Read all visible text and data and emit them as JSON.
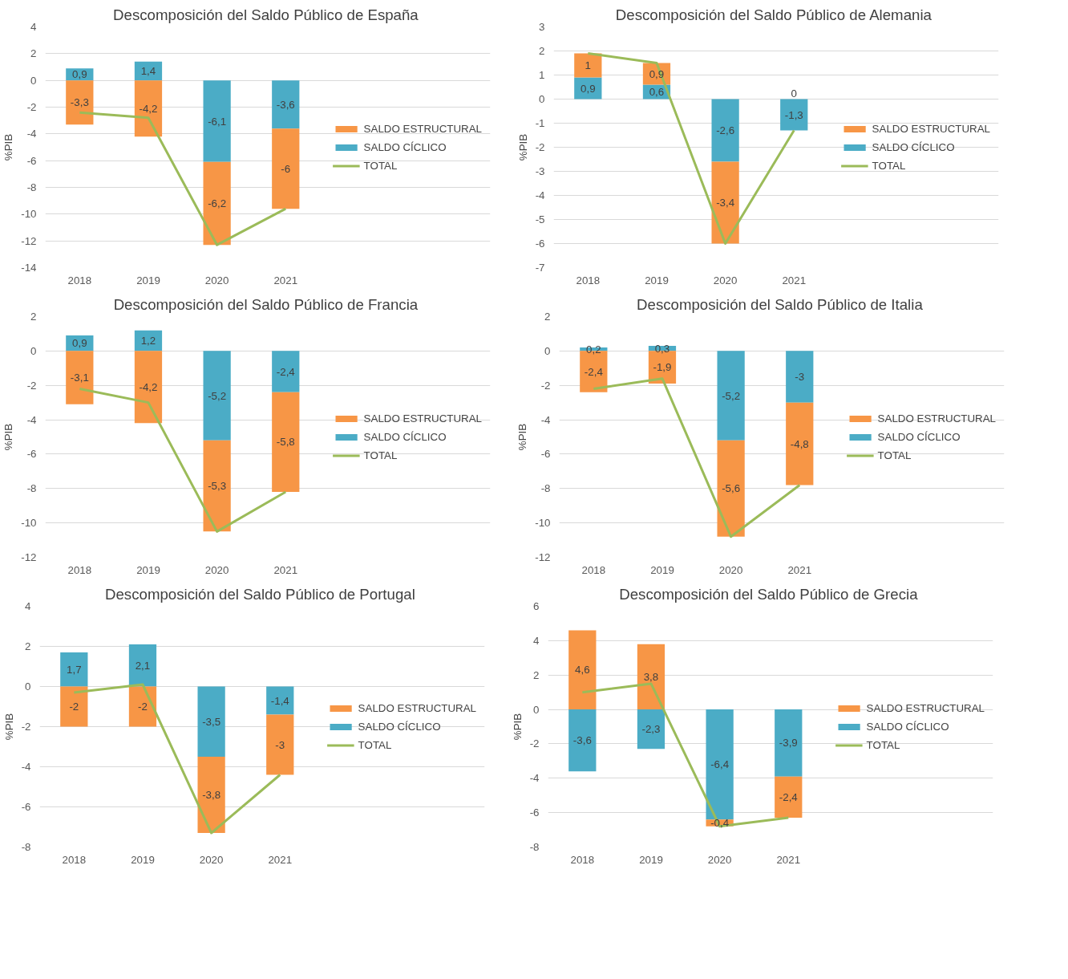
{
  "chart_data": [
    {
      "type": "bar",
      "stacked": true,
      "title": "Descomposición  del Saldo Público de España",
      "ylabel": "%PIB",
      "categories": [
        "2018",
        "2019",
        "2020",
        "2021"
      ],
      "ylim": [
        -14,
        4
      ],
      "yticks": [
        -14,
        -12,
        -10,
        -8,
        -6,
        -4,
        -2,
        0,
        2,
        4
      ],
      "grid": "y",
      "legend": "right",
      "series": [
        {
          "name": "SALDO CÍCLICO",
          "color": "#4bacc6",
          "values": [
            0.9,
            1.4,
            -6.1,
            -3.6
          ],
          "value_labels": [
            "0,9",
            "1,4",
            "-6,1",
            "-3,6"
          ]
        },
        {
          "name": "SALDO ESTRUCTURAL",
          "color": "#f79646",
          "values": [
            -3.3,
            -4.2,
            -6.2,
            -6
          ],
          "value_labels": [
            "-3,3",
            "-4,2",
            "-6,2",
            "-6"
          ]
        },
        {
          "name": "TOTAL",
          "type": "line",
          "color": "#9bbb59",
          "values": [
            -2.4,
            -2.8,
            -12.3,
            -9.6
          ]
        }
      ]
    },
    {
      "type": "bar",
      "stacked": true,
      "title": "Descomposición  del Saldo Público de Alemania",
      "ylabel": "%PIB",
      "categories": [
        "2018",
        "2019",
        "2020",
        "2021"
      ],
      "ylim": [
        -7,
        3
      ],
      "yticks": [
        -7,
        -6,
        -5,
        -4,
        -3,
        -2,
        -1,
        0,
        1,
        2,
        3
      ],
      "grid": "y",
      "legend": "right",
      "series": [
        {
          "name": "SALDO CÍCLICO",
          "color": "#4bacc6",
          "values": [
            0.9,
            0.6,
            -2.6,
            -1.3
          ],
          "value_labels": [
            "0,9",
            "0,6",
            "-2,6",
            "-1,3"
          ]
        },
        {
          "name": "SALDO ESTRUCTURAL",
          "color": "#f79646",
          "values": [
            1,
            0.9,
            -3.4,
            0
          ],
          "value_labels": [
            "1",
            "0,9",
            "-3,4",
            "0"
          ]
        },
        {
          "name": "TOTAL",
          "type": "line",
          "color": "#9bbb59",
          "values": [
            1.9,
            1.5,
            -6.0,
            -1.3
          ]
        }
      ]
    },
    {
      "type": "bar",
      "stacked": true,
      "title": "Descomposición  del Saldo Público de Francia",
      "ylabel": "%PIB",
      "categories": [
        "2018",
        "2019",
        "2020",
        "2021"
      ],
      "ylim": [
        -12,
        2
      ],
      "yticks": [
        -12,
        -10,
        -8,
        -6,
        -4,
        -2,
        0,
        2
      ],
      "grid": "y",
      "legend": "right",
      "series": [
        {
          "name": "SALDO CÍCLICO",
          "color": "#4bacc6",
          "values": [
            0.9,
            1.2,
            -5.2,
            -2.4
          ],
          "value_labels": [
            "0,9",
            "1,2",
            "-5,2",
            "-2,4"
          ]
        },
        {
          "name": "SALDO ESTRUCTURAL",
          "color": "#f79646",
          "values": [
            -3.1,
            -4.2,
            -5.3,
            -5.8
          ],
          "value_labels": [
            "-3,1",
            "-4,2",
            "-5,3",
            "-5,8"
          ]
        },
        {
          "name": "TOTAL",
          "type": "line",
          "color": "#9bbb59",
          "values": [
            -2.2,
            -3.0,
            -10.5,
            -8.2
          ]
        }
      ]
    },
    {
      "type": "bar",
      "stacked": true,
      "title": "Descomposición  del Saldo Público de Italia",
      "ylabel": "%PIB",
      "categories": [
        "2018",
        "2019",
        "2020",
        "2021"
      ],
      "ylim": [
        -12,
        2
      ],
      "yticks": [
        -12,
        -10,
        -8,
        -6,
        -4,
        -2,
        0,
        2
      ],
      "grid": "y",
      "legend": "right",
      "series": [
        {
          "name": "SALDO CÍCLICO",
          "color": "#4bacc6",
          "values": [
            0.2,
            0.3,
            -5.2,
            -3
          ],
          "value_labels": [
            "0,2",
            "0,3",
            "-5,2",
            "-3"
          ]
        },
        {
          "name": "SALDO ESTRUCTURAL",
          "color": "#f79646",
          "values": [
            -2.4,
            -1.9,
            -5.6,
            -4.8
          ],
          "value_labels": [
            "-2,4",
            "-1,9",
            "-5,6",
            "-4,8"
          ]
        },
        {
          "name": "TOTAL",
          "type": "line",
          "color": "#9bbb59",
          "values": [
            -2.2,
            -1.6,
            -10.8,
            -7.8
          ]
        }
      ]
    },
    {
      "type": "bar",
      "stacked": true,
      "title": "Descomposición  del Saldo Público de Portugal",
      "ylabel": "%PIB",
      "categories": [
        "2018",
        "2019",
        "2020",
        "2021"
      ],
      "ylim": [
        -8,
        4
      ],
      "yticks": [
        -8,
        -6,
        -4,
        -2,
        0,
        2,
        4
      ],
      "grid": "y",
      "legend": "right",
      "series": [
        {
          "name": "SALDO CÍCLICO",
          "color": "#4bacc6",
          "values": [
            1.7,
            2.1,
            -3.5,
            -1.4
          ],
          "value_labels": [
            "1,7",
            "2,1",
            "-3,5",
            "-1,4"
          ]
        },
        {
          "name": "SALDO ESTRUCTURAL",
          "color": "#f79646",
          "values": [
            -2,
            -2,
            -3.8,
            -3
          ],
          "value_labels": [
            "-2",
            "-2",
            "-3,8",
            "-3"
          ]
        },
        {
          "name": "TOTAL",
          "type": "line",
          "color": "#9bbb59",
          "values": [
            -0.3,
            0.1,
            -7.3,
            -4.4
          ]
        }
      ]
    },
    {
      "type": "bar",
      "stacked": true,
      "title": "Descomposición  del Saldo Público de Grecia",
      "ylabel": "%PIB",
      "categories": [
        "2018",
        "2019",
        "2020",
        "2021"
      ],
      "ylim": [
        -8,
        6
      ],
      "yticks": [
        -8,
        -6,
        -4,
        -2,
        0,
        2,
        4,
        6
      ],
      "grid": "y",
      "legend": "right",
      "series": [
        {
          "name": "SALDO CÍCLICO",
          "color": "#4bacc6",
          "values": [
            -3.6,
            -2.3,
            -6.4,
            -3.9
          ],
          "value_labels": [
            "-3,6",
            "-2,3",
            "-6,4",
            "-3,9"
          ]
        },
        {
          "name": "SALDO ESTRUCTURAL",
          "color": "#f79646",
          "values": [
            4.6,
            3.8,
            -0.4,
            -2.4
          ],
          "value_labels": [
            "4,6",
            "3,8",
            "-0,4",
            "-2,4"
          ]
        },
        {
          "name": "TOTAL",
          "type": "line",
          "color": "#9bbb59",
          "values": [
            1.0,
            1.5,
            -6.8,
            -6.3
          ]
        }
      ]
    }
  ]
}
